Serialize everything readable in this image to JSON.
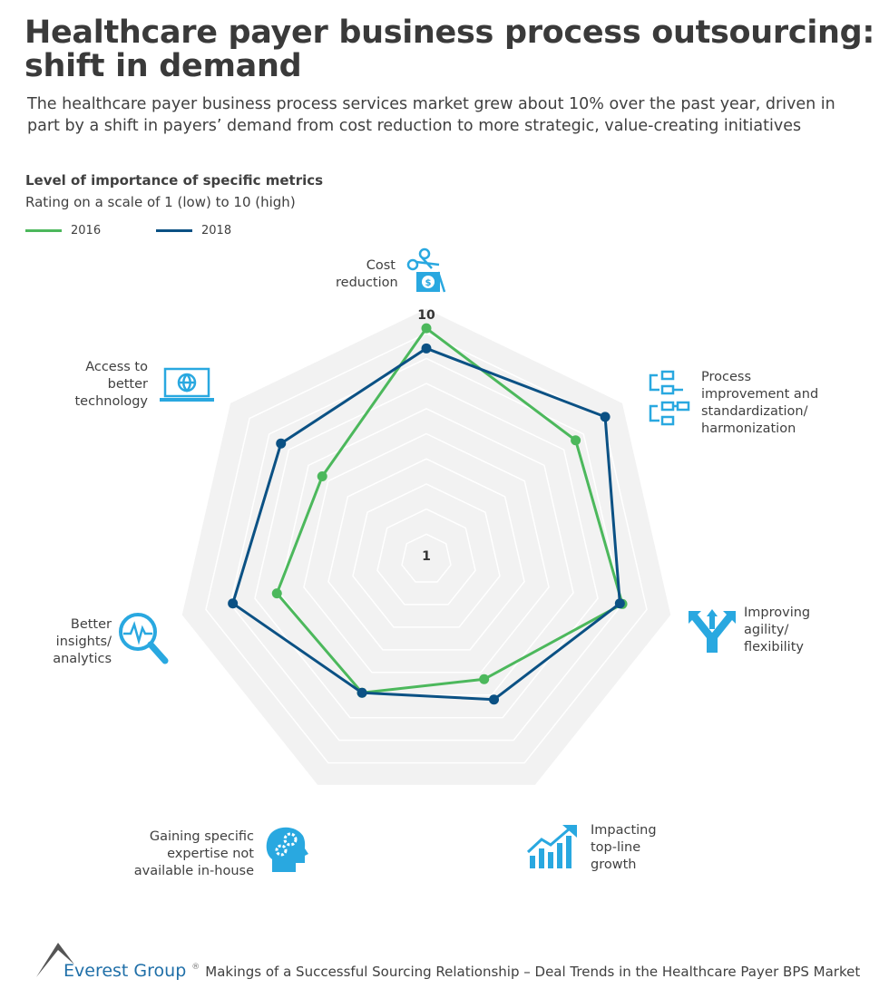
{
  "header": {
    "title_line1": "Healthcare payer business process outsourcing:",
    "title_line2": "shift in demand",
    "subtitle": "The healthcare payer business process services market grew about 10% over the past year, driven in part by a shift in payers’ demand from cost reduction to more strategic, value-creating initiatives"
  },
  "chart_data": {
    "type": "radar",
    "title": "Level of importance of specific metrics",
    "subtitle": "Rating on a scale of 1 (low) to 10 (high)",
    "range": [
      0,
      10
    ],
    "tick_labels": {
      "min": "1",
      "max": "10"
    },
    "grid": true,
    "legend": "top-left",
    "categories": [
      "Cost reduction",
      "Process improvement and standardization/ harmonization",
      "Improving agility/ flexibility",
      "Impacting top-line growth",
      "Gaining specific expertise not available in-house",
      "Better insights/ analytics",
      "Access to better technology"
    ],
    "series": [
      {
        "name": "2016",
        "color": "#4cb85c",
        "values": [
          9.2,
          7.6,
          8.0,
          5.3,
          5.9,
          6.1,
          5.3
        ]
      },
      {
        "name": "2018",
        "color": "#0b5184",
        "values": [
          8.4,
          9.1,
          7.9,
          6.2,
          5.9,
          7.9,
          7.4
        ]
      }
    ]
  },
  "labels": {
    "cost": [
      "Cost",
      "reduction"
    ],
    "process": [
      "Process",
      "improvement and",
      "standardization/",
      "harmonization"
    ],
    "agility": [
      "Improving",
      "agility/",
      "flexibility"
    ],
    "topline": [
      "Impacting",
      "top-line",
      "growth"
    ],
    "expertise": [
      "Gaining specific",
      "expertise not",
      "available in-house"
    ],
    "insights": [
      "Better",
      "insights/",
      "analytics"
    ],
    "technology": [
      "Access to",
      "better",
      "technology"
    ]
  },
  "icons": {
    "accent": "#29a8e0",
    "cost": "scissors-dollar-icon",
    "process": "process-flow-icon",
    "agility": "diverging-arrows-icon",
    "topline": "growth-chart-icon",
    "expertise": "head-gears-icon",
    "insights": "magnifier-pulse-icon",
    "technology": "laptop-globe-icon"
  },
  "footer": {
    "brand": "Everest Group",
    "reg": "®",
    "source": "Makings of a Successful Sourcing Relationship – Deal Trends in the Healthcare Payer BPS Market"
  }
}
